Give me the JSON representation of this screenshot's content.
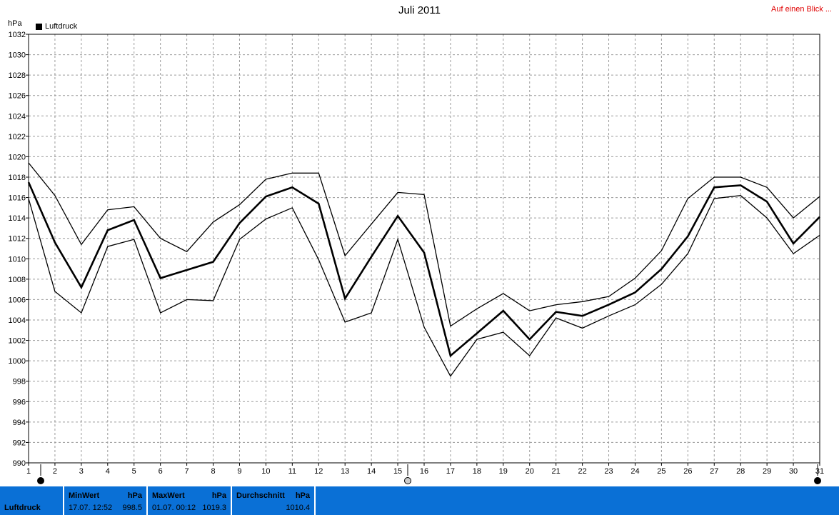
{
  "header": {
    "title": "Juli 2011",
    "overview_link": "Auf einen Blick ...",
    "unit": "hPa",
    "legend_label": "Luftdruck"
  },
  "chart_data": {
    "type": "line",
    "title": "Juli 2011",
    "ylabel": "hPa",
    "xlabel": "",
    "ylim": [
      990,
      1032
    ],
    "xlim": [
      1,
      31
    ],
    "grid": true,
    "legend_position": "top-left",
    "y_ticks": [
      990,
      992,
      994,
      996,
      998,
      1000,
      1002,
      1004,
      1006,
      1008,
      1010,
      1012,
      1014,
      1016,
      1018,
      1020,
      1022,
      1024,
      1026,
      1028,
      1030,
      1032
    ],
    "x": [
      1,
      2,
      3,
      4,
      5,
      6,
      7,
      8,
      9,
      10,
      11,
      12,
      13,
      14,
      15,
      16,
      17,
      18,
      19,
      20,
      21,
      22,
      23,
      24,
      25,
      26,
      27,
      28,
      29,
      30,
      31
    ],
    "series": [
      {
        "name": "Luftdruck",
        "role": "mean",
        "values": [
          1017.5,
          1011.6,
          1007.2,
          1012.8,
          1013.8,
          1008.1,
          1008.9,
          1009.7,
          1013.5,
          1016.1,
          1017.0,
          1015.4,
          1006.1,
          1010.2,
          1014.2,
          1010.6,
          1000.5,
          1002.7,
          1004.9,
          1002.1,
          1004.8,
          1004.4,
          1005.5,
          1006.7,
          1009.0,
          1012.2,
          1017.0,
          1017.2,
          1015.6,
          1011.5,
          1014.1
        ]
      },
      {
        "role": "max",
        "values": [
          1019.4,
          1016.2,
          1011.4,
          1014.8,
          1015.1,
          1012.0,
          1010.7,
          1013.6,
          1015.3,
          1017.8,
          1018.4,
          1018.4,
          1010.3,
          1013.4,
          1016.5,
          1016.3,
          1003.4,
          1005.1,
          1006.6,
          1004.9,
          1005.5,
          1005.8,
          1006.3,
          1008.1,
          1010.8,
          1015.9,
          1018.0,
          1018.0,
          1017.0,
          1014.0,
          1016.1
        ]
      },
      {
        "role": "min",
        "values": [
          1015.9,
          1006.8,
          1004.7,
          1011.2,
          1011.9,
          1004.7,
          1006.0,
          1005.9,
          1011.9,
          1013.9,
          1015.0,
          1009.9,
          1003.8,
          1004.7,
          1011.9,
          1003.3,
          998.5,
          1002.1,
          1002.8,
          1000.5,
          1004.2,
          1003.2,
          1004.4,
          1005.5,
          1007.5,
          1010.5,
          1015.9,
          1016.2,
          1014.0,
          1010.5,
          1012.3
        ]
      }
    ]
  },
  "footer": {
    "label": "Luftdruck",
    "min": {
      "label": "MinWert",
      "unit": "hPa",
      "time": "17.07.  12:52",
      "value": "998.5"
    },
    "max": {
      "label": "MaxWert",
      "unit": "hPa",
      "time": "01.07.  00:12",
      "value": "1019.3"
    },
    "avg": {
      "label": "Durchschnitt",
      "unit": "hPa",
      "value": "1010.4"
    }
  },
  "colors": {
    "footer_bg": "#0a70d6",
    "link": "#e00000",
    "line": "#000000",
    "grid": "#9a9a9a"
  }
}
